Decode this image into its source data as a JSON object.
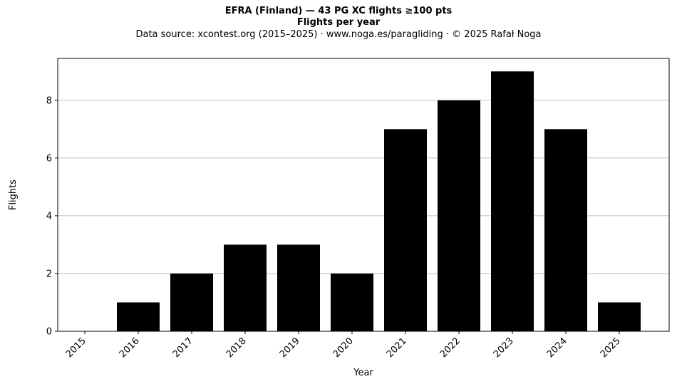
{
  "chart_data": {
    "type": "bar",
    "title": "EFRA (Finland)  —  43 PG XC flights ≥100 pts",
    "subtitle": "Flights per year",
    "source": "Data source: xcontest.org (2015–2025)  ·  www.noga.es/paragliding  ·  © 2025 Rafał Noga",
    "xlabel": "Year",
    "ylabel": "Flights",
    "categories": [
      "2015",
      "2016",
      "2017",
      "2018",
      "2019",
      "2020",
      "2021",
      "2022",
      "2023",
      "2024",
      "2025"
    ],
    "values": [
      0,
      1,
      2,
      3,
      3,
      2,
      7,
      8,
      9,
      7,
      1
    ],
    "ylim": [
      0,
      9.45
    ],
    "yticks": [
      0,
      2,
      4,
      6,
      8
    ],
    "grid": "y",
    "bar_color": "#000000",
    "grid_color": "#b0b0b0"
  }
}
